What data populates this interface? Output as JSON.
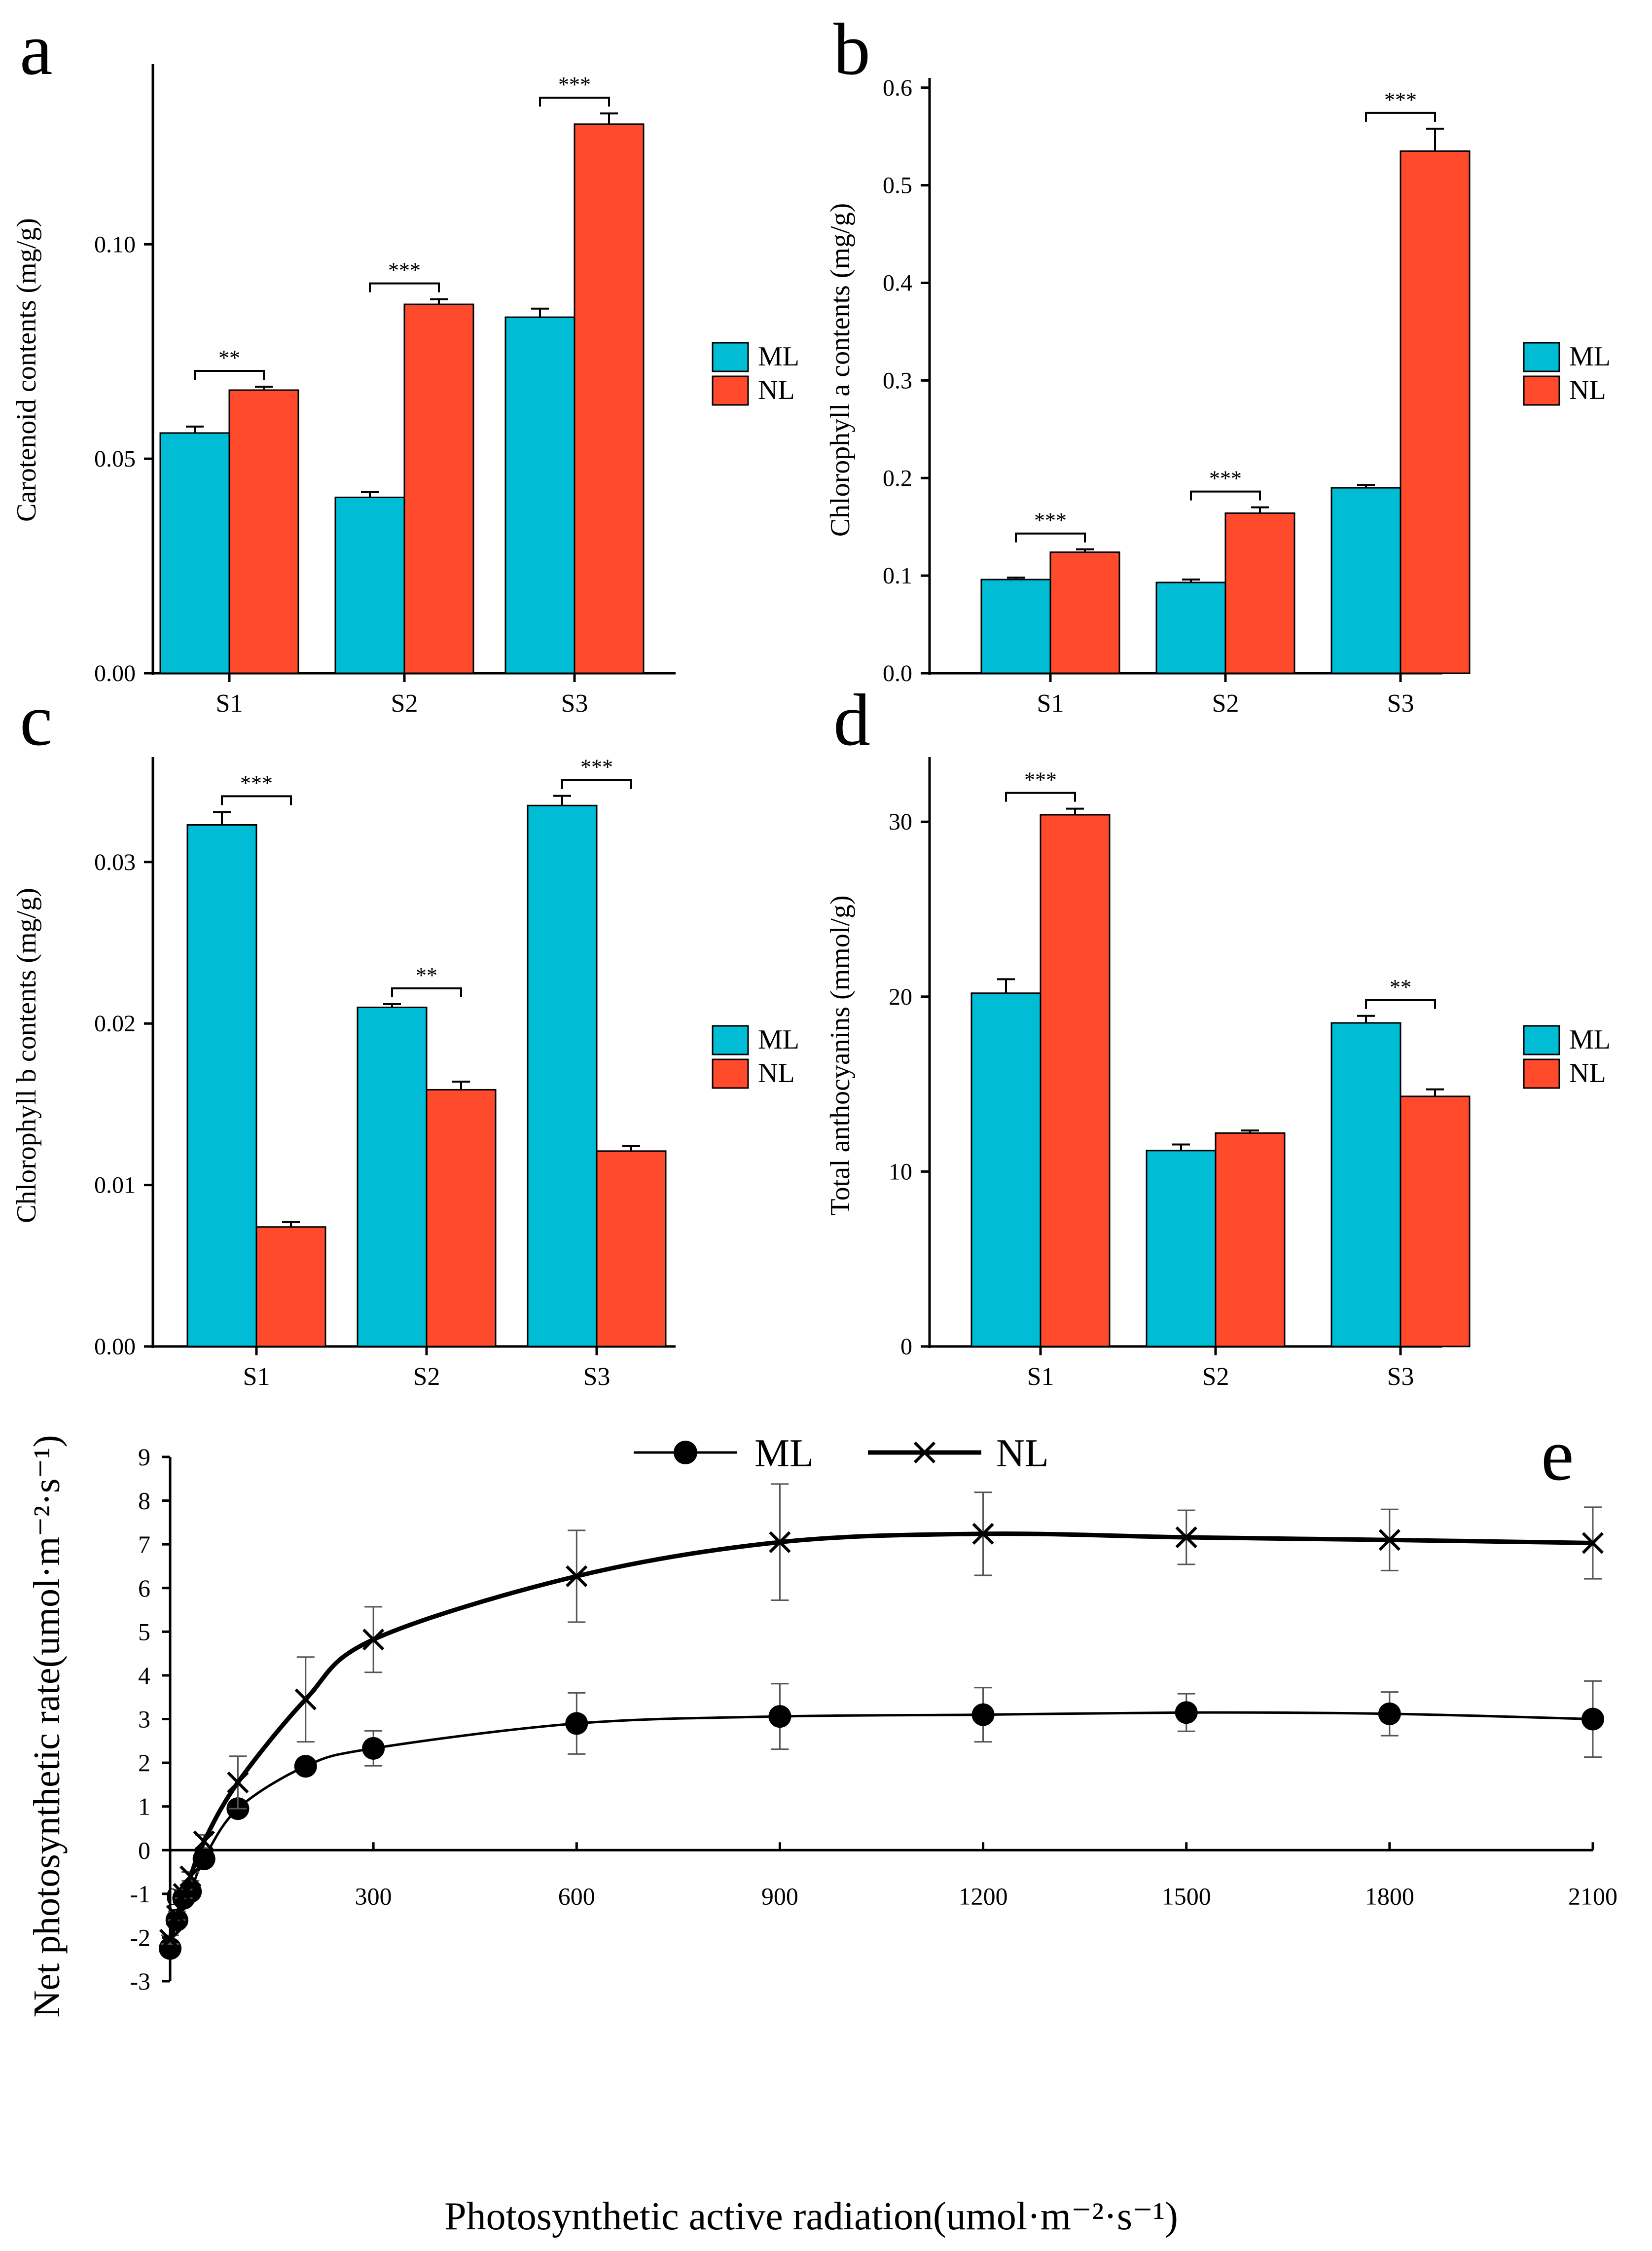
{
  "colors": {
    "ML": "#00bcd4",
    "NL": "#ff4b2b",
    "axis": "#000000"
  },
  "chart_data": [
    {
      "id": "a",
      "panel_label": "a",
      "type": "bar",
      "categories": [
        "S1",
        "S2",
        "S3"
      ],
      "ylabel": "Carotenoid contents (mg/g)",
      "ylim": [
        0,
        0.142
      ],
      "yticks": [
        0.0,
        0.05,
        0.1
      ],
      "ytick_labels": [
        "0.00",
        "0.05",
        "0.10"
      ],
      "series": [
        {
          "name": "ML",
          "values": [
            0.056,
            0.041,
            0.083
          ],
          "errors": [
            0.0015,
            0.0012,
            0.002
          ]
        },
        {
          "name": "NL",
          "values": [
            0.066,
            0.086,
            0.128
          ],
          "errors": [
            0.0008,
            0.0012,
            0.0025
          ]
        }
      ],
      "significance": [
        "**",
        "***",
        "***"
      ],
      "legend": [
        "ML",
        "NL"
      ]
    },
    {
      "id": "b",
      "panel_label": "b",
      "type": "bar",
      "categories": [
        "S1",
        "S2",
        "S3"
      ],
      "ylabel": "Chlorophyll a contents (mg/g)",
      "ylim": [
        0,
        0.61
      ],
      "yticks": [
        0.0,
        0.1,
        0.2,
        0.3,
        0.4,
        0.5,
        0.6
      ],
      "ytick_labels": [
        "0.0",
        "0.1",
        "0.2",
        "0.3",
        "0.4",
        "0.5",
        "0.6"
      ],
      "series": [
        {
          "name": "ML",
          "values": [
            0.096,
            0.093,
            0.19
          ],
          "errors": [
            0.002,
            0.003,
            0.003
          ]
        },
        {
          "name": "NL",
          "values": [
            0.124,
            0.164,
            0.535
          ],
          "errors": [
            0.003,
            0.006,
            0.023
          ]
        }
      ],
      "significance": [
        "***",
        "***",
        "***"
      ],
      "legend": [
        "ML",
        "NL"
      ]
    },
    {
      "id": "c",
      "panel_label": "c",
      "type": "bar",
      "categories": [
        "S1",
        "S2",
        "S3"
      ],
      "ylabel": "Chlorophyll b contents (mg/g)",
      "ylim": [
        0,
        0.0365
      ],
      "yticks": [
        0.0,
        0.01,
        0.02,
        0.03
      ],
      "ytick_labels": [
        "0.00",
        "0.01",
        "0.02",
        "0.03"
      ],
      "series": [
        {
          "name": "ML",
          "values": [
            0.0323,
            0.021,
            0.0335
          ],
          "errors": [
            0.0008,
            0.0002,
            0.0006
          ]
        },
        {
          "name": "NL",
          "values": [
            0.0074,
            0.0159,
            0.0121
          ],
          "errors": [
            0.0003,
            0.0005,
            0.0003
          ]
        }
      ],
      "significance": [
        "***",
        "**",
        "***"
      ],
      "legend": [
        "ML",
        "NL"
      ]
    },
    {
      "id": "d",
      "panel_label": "d",
      "type": "bar",
      "categories": [
        "S1",
        "S2",
        "S3"
      ],
      "ylabel": "Total anthocyanins (mmol/g)",
      "ylim": [
        0,
        33.7
      ],
      "yticks": [
        0,
        10,
        20,
        30
      ],
      "ytick_labels": [
        "0",
        "10",
        "20",
        "30"
      ],
      "series": [
        {
          "name": "ML",
          "values": [
            20.2,
            11.2,
            18.5
          ],
          "errors": [
            0.8,
            0.35,
            0.4
          ]
        },
        {
          "name": "NL",
          "values": [
            30.4,
            12.2,
            14.3
          ],
          "errors": [
            0.35,
            0.15,
            0.4
          ]
        }
      ],
      "significance": [
        "***",
        null,
        "**"
      ],
      "legend": [
        "ML",
        "NL"
      ]
    },
    {
      "id": "e",
      "panel_label": "e",
      "type": "line",
      "xlabel": "Photosynthetic active radiation(umol·m⁻²·s⁻¹)",
      "ylabel": "Net photosynthetic rate(umol·m⁻²·s⁻¹)",
      "xlim": [
        0,
        2100
      ],
      "ylim": [
        -3,
        9
      ],
      "xticks": [
        0,
        300,
        600,
        900,
        1200,
        1500,
        1800,
        2100
      ],
      "xtick_labels": [
        "0",
        "300",
        "600",
        "900",
        "1200",
        "1500",
        "1800",
        "2100"
      ],
      "yticks": [
        -3,
        -2,
        -1,
        0,
        1,
        2,
        3,
        4,
        5,
        6,
        7,
        8,
        9
      ],
      "ytick_labels": [
        "-3",
        "-2",
        "-1",
        "0",
        "1",
        "2",
        "3",
        "4",
        "5",
        "6",
        "7",
        "8",
        "9"
      ],
      "series": [
        {
          "name": "ML",
          "marker": "circle",
          "x": [
            0,
            10,
            20,
            30,
            50,
            100,
            200,
            300,
            600,
            900,
            1200,
            1500,
            1800,
            2100
          ],
          "y": [
            -2.25,
            -1.6,
            -1.1,
            -0.95,
            -0.2,
            0.95,
            1.92,
            2.33,
            2.9,
            3.06,
            3.1,
            3.15,
            3.12,
            3.0
          ],
          "errors": [
            0.1,
            0.1,
            0.1,
            0.1,
            0.12,
            0.1,
            0.15,
            0.4,
            0.7,
            0.75,
            0.62,
            0.43,
            0.5,
            0.87
          ]
        },
        {
          "name": "NL",
          "marker": "x",
          "x": [
            0,
            10,
            20,
            30,
            50,
            100,
            200,
            300,
            600,
            900,
            1200,
            1500,
            1800,
            2100
          ],
          "y": [
            -2.05,
            -1.5,
            -1.0,
            -0.6,
            0.2,
            1.55,
            3.45,
            4.82,
            6.27,
            7.05,
            7.24,
            7.16,
            7.1,
            7.03
          ],
          "errors": [
            0.1,
            0.1,
            0.1,
            0.1,
            0.15,
            0.6,
            0.97,
            0.75,
            1.05,
            1.33,
            0.95,
            0.62,
            0.7,
            0.82
          ]
        }
      ],
      "legend": [
        "ML",
        "NL"
      ]
    }
  ]
}
